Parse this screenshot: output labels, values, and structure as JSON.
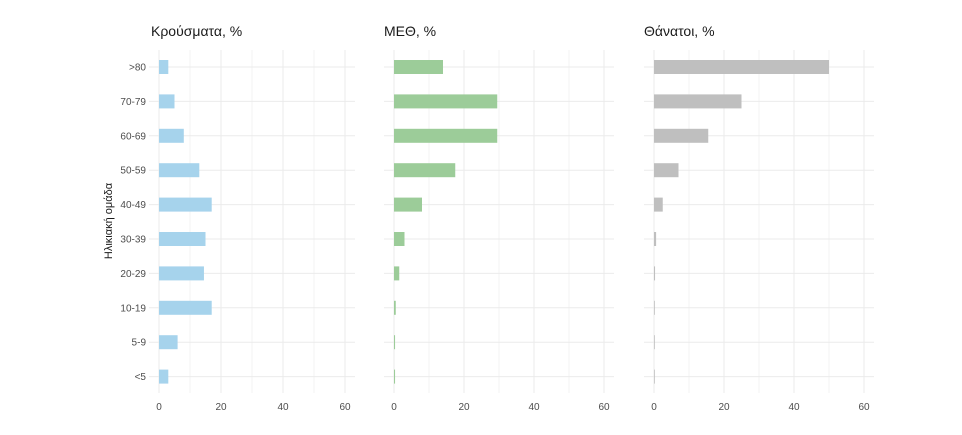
{
  "chart_data": {
    "type": "bar",
    "orientation": "horizontal",
    "ylabel": "Ηλικιακή ομάδα",
    "categories": [
      "<5",
      "5-9",
      "10-19",
      "20-29",
      "30-39",
      "40-49",
      "50-59",
      "60-69",
      "70-79",
      ">80"
    ],
    "xlim": [
      0,
      65
    ],
    "x_ticks": [
      0,
      20,
      40,
      60
    ],
    "grid": true,
    "legend": "none",
    "panels": [
      {
        "title": "Κρούσματα, %",
        "color": "#a6d3ec",
        "values": [
          3,
          6,
          17,
          14.5,
          15,
          17,
          13,
          8,
          5,
          3
        ]
      },
      {
        "title": "ΜΕΘ, %",
        "color": "#9ccc99",
        "values": [
          0.3,
          0.3,
          0.5,
          1.5,
          3,
          8,
          17.5,
          29.5,
          29.5,
          14
        ]
      },
      {
        "title": "Θάνατοι, %",
        "color": "#bfbfbf",
        "values": [
          0.1,
          0.1,
          0.2,
          0.3,
          0.6,
          2.5,
          7,
          15.5,
          25,
          50
        ]
      }
    ]
  }
}
